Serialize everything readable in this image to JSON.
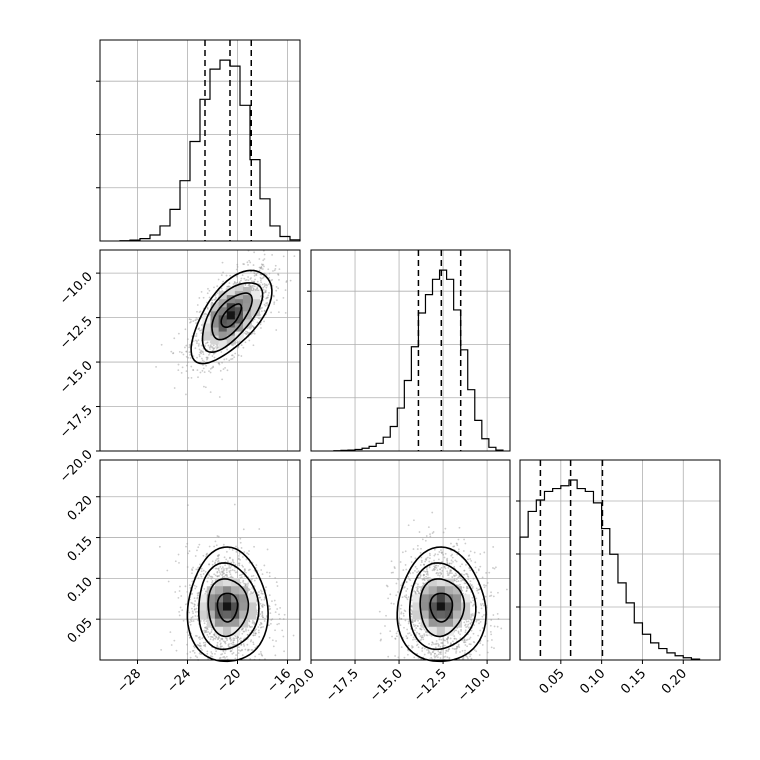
{
  "chart_data": {
    "type": "corner",
    "title": "",
    "parameters": [
      "p0",
      "p1",
      "p2"
    ],
    "axes_labels": [
      "",
      "",
      ""
    ],
    "ranges": [
      [
        -31,
        -15
      ],
      [
        -20,
        -8.7
      ],
      [
        0.0,
        0.245
      ]
    ],
    "ticks": {
      "p0": [
        -28,
        -24,
        -20,
        -16
      ],
      "p1": [
        -20.0,
        -17.5,
        -15.0,
        -12.5,
        -10.0
      ],
      "p2": [
        0.05,
        0.1,
        0.15,
        0.2
      ]
    },
    "tick_labels": {
      "p0": [
        "−28",
        "−24",
        "−20",
        "−16"
      ],
      "p1": [
        "−20.0",
        "−17.5",
        "−15.0",
        "−12.5",
        "−10.0"
      ],
      "p2": [
        "0.05",
        "0.10",
        "0.15",
        "0.20"
      ],
      "p1_left": [
        "−10.0",
        "−12.5",
        "−15.0",
        "−17.5",
        "−20.0"
      ],
      "p2_left": [
        "0.05",
        "0.10",
        "0.15",
        "0.20"
      ]
    },
    "quantiles": {
      "p0": [
        -22.6,
        -20.6,
        -18.9
      ],
      "p1": [
        -13.9,
        -12.6,
        -11.5
      ],
      "p2": [
        0.025,
        0.062,
        0.101
      ]
    },
    "histograms": {
      "p0": {
        "bin_edges": [
          -29.4,
          -28.6,
          -27.8,
          -27.0,
          -26.2,
          -25.4,
          -24.6,
          -23.8,
          -23.0,
          -22.2,
          -21.4,
          -20.6,
          -19.8,
          -19.0,
          -18.2,
          -17.4,
          -16.6,
          -15.8,
          -15.0
        ],
        "counts": [
          1,
          3,
          8,
          20,
          50,
          105,
          200,
          330,
          470,
          570,
          600,
          580,
          450,
          270,
          140,
          50,
          15,
          4
        ]
      },
      "p1": {
        "bin_edges": [
          -18.7,
          -18.3,
          -17.9,
          -17.5,
          -17.1,
          -16.7,
          -16.3,
          -15.9,
          -15.5,
          -15.1,
          -14.7,
          -14.3,
          -13.9,
          -13.5,
          -13.1,
          -12.7,
          -12.3,
          -11.9,
          -11.5,
          -11.1,
          -10.7,
          -10.3,
          -9.9,
          -9.5,
          -9.1
        ],
        "counts": [
          1,
          2,
          3,
          5,
          9,
          15,
          25,
          45,
          80,
          140,
          230,
          340,
          450,
          510,
          560,
          590,
          560,
          460,
          330,
          200,
          100,
          40,
          12,
          3
        ]
      },
      "p2": {
        "bin_edges": [
          0.0,
          0.01,
          0.02,
          0.03,
          0.04,
          0.05,
          0.06,
          0.07,
          0.08,
          0.09,
          0.1,
          0.11,
          0.12,
          0.13,
          0.14,
          0.15,
          0.16,
          0.17,
          0.18,
          0.19,
          0.2,
          0.21,
          0.22
        ],
        "counts": [
          430,
          520,
          560,
          590,
          600,
          610,
          630,
          600,
          590,
          550,
          460,
          370,
          270,
          200,
          130,
          90,
          60,
          40,
          25,
          15,
          8,
          3
        ]
      }
    },
    "pairs": [
      {
        "x": "p0",
        "y": "p1",
        "center": [
          -20.5,
          -12.4
        ],
        "sd": [
          1.6,
          1.3
        ],
        "rho": 0.62
      },
      {
        "x": "p0",
        "y": "p2",
        "center": [
          -20.8,
          0.065
        ],
        "sd": [
          1.6,
          0.035
        ],
        "rho": 0.0
      },
      {
        "x": "p1",
        "y": "p2",
        "center": [
          -12.6,
          0.065
        ],
        "sd": [
          1.25,
          0.035
        ],
        "rho": 0.0
      }
    ],
    "grid": true
  }
}
